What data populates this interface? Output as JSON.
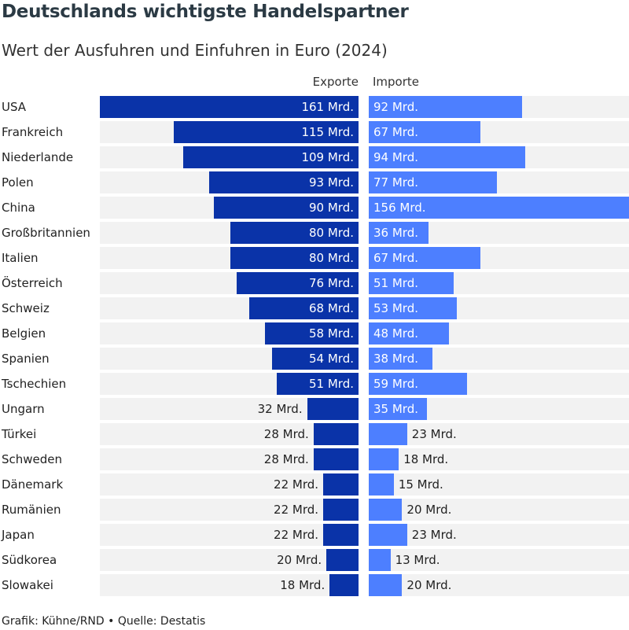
{
  "title": "Deutschlands wichtigste Handelspartner",
  "subtitle": "Wert der Ausfuhren und Einfuhren in Euro (2024)",
  "footer": "Grafik: Kühne/RND • Quelle: Destatis",
  "colors": {
    "exports": "#0a33a8",
    "imports": "#4d7fff",
    "track": "#f2f2f2"
  },
  "chart_data": {
    "type": "bar",
    "orientation": "horizontal-diverging",
    "unit": "Mrd.",
    "series_labels": {
      "exports": "Exporte",
      "imports": "Importe"
    },
    "categories": [
      "USA",
      "Frankreich",
      "Niederlande",
      "Polen",
      "China",
      "Großbritannien",
      "Italien",
      "Österreich",
      "Schweiz",
      "Belgien",
      "Spanien",
      "Tschechien",
      "Ungarn",
      "Türkei",
      "Schweden",
      "Dänemark",
      "Rumänien",
      "Japan",
      "Südkorea",
      "Slowakei"
    ],
    "series": [
      {
        "name": "Exporte",
        "values": [
          161,
          115,
          109,
          93,
          90,
          80,
          80,
          76,
          68,
          58,
          54,
          51,
          32,
          28,
          28,
          22,
          22,
          22,
          20,
          18
        ]
      },
      {
        "name": "Importe",
        "values": [
          92,
          67,
          94,
          77,
          156,
          36,
          67,
          51,
          53,
          48,
          38,
          59,
          35,
          23,
          18,
          15,
          20,
          23,
          13,
          20
        ]
      }
    ],
    "value_labels": {
      "exports": [
        "161 Mrd.",
        "115 Mrd.",
        "109 Mrd.",
        "93 Mrd.",
        "90 Mrd.",
        "80 Mrd.",
        "80 Mrd.",
        "76 Mrd.",
        "68 Mrd.",
        "58 Mrd.",
        "54 Mrd.",
        "51 Mrd.",
        "32 Mrd.",
        "28 Mrd.",
        "28 Mrd.",
        "22 Mrd.",
        "22 Mrd.",
        "22 Mrd.",
        "20 Mrd.",
        "18 Mrd."
      ],
      "imports": [
        "92 Mrd.",
        "67 Mrd.",
        "94 Mrd.",
        "77 Mrd.",
        "156 Mrd.",
        "36 Mrd.",
        "67 Mrd.",
        "51 Mrd.",
        "53 Mrd.",
        "48 Mrd.",
        "38 Mrd.",
        "59 Mrd.",
        "35 Mrd.",
        "23 Mrd.",
        "18 Mrd.",
        "15 Mrd.",
        "20 Mrd.",
        "23 Mrd.",
        "13 Mrd.",
        "20 Mrd."
      ]
    }
  }
}
